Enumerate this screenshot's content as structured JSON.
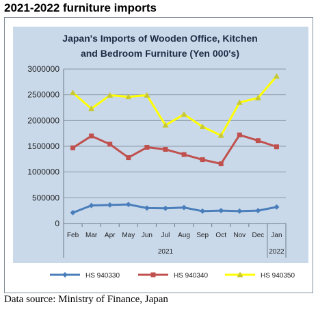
{
  "heading": "2021-2022 furniture imports",
  "source": "Data source: Ministry of Finance, Japan",
  "colors": {
    "background": "#c9d9ea",
    "grid": "#8c97a3",
    "hs940330": "#4a7ebb",
    "hs940340": "#c0504d",
    "hs940350": "#ffff00",
    "hs940350_marker": "#c8c830"
  },
  "chart_data": {
    "type": "line",
    "title": [
      "Japan's Imports of  Wooden  Office, Kitchen",
      "and Bedroom Furniture (Yen 000's)"
    ],
    "categories": [
      "Feb",
      "Mar",
      "Apr",
      "May",
      "Jun",
      "Jul",
      "Aug",
      "Sep",
      "Oct",
      "Nov",
      "Dec",
      "Jan"
    ],
    "year_labels": [
      "2021",
      "2022"
    ],
    "ylim": [
      0,
      3000000
    ],
    "yticks": [
      "0",
      "500000",
      "1000000",
      "1500000",
      "2000000",
      "2500000",
      "3000000"
    ],
    "ytick_values": [
      0,
      500000,
      1000000,
      1500000,
      2000000,
      2500000,
      3000000
    ],
    "grid": true,
    "legend": "bottom",
    "series": [
      {
        "name": "HS 940330",
        "marker": "diamond",
        "values": [
          210000,
          350000,
          360000,
          370000,
          300000,
          295000,
          310000,
          240000,
          250000,
          240000,
          250000,
          320000
        ]
      },
      {
        "name": "HS 940340",
        "marker": "square",
        "values": [
          1470000,
          1700000,
          1540000,
          1280000,
          1480000,
          1440000,
          1340000,
          1240000,
          1160000,
          1720000,
          1610000,
          1490000
        ]
      },
      {
        "name": "HS 940350",
        "marker": "triangle",
        "values": [
          2540000,
          2230000,
          2490000,
          2460000,
          2490000,
          1910000,
          2120000,
          1880000,
          1710000,
          2350000,
          2440000,
          2860000
        ]
      }
    ]
  }
}
